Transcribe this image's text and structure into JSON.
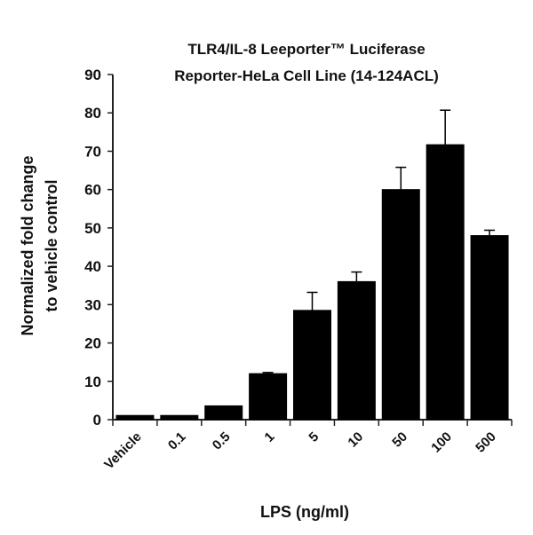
{
  "chart_data": {
    "type": "bar",
    "title_lines": [
      "TLR4/IL-8 Leeporter™ Luciferase",
      "Reporter-HeLa Cell Line (14-124ACL)"
    ],
    "xlabel": "LPS (ng/ml)",
    "ylabel_lines": [
      "Normalized fold change",
      "to vehicle control"
    ],
    "categories": [
      "Vehicle",
      "0.1",
      "0.5",
      "1",
      "5",
      "10",
      "50",
      "100",
      "500"
    ],
    "values": [
      1.1,
      1.1,
      3.6,
      12,
      28.5,
      36,
      60,
      71.7,
      48
    ],
    "error_upper": [
      null,
      null,
      null,
      0.3,
      4.7,
      2.5,
      5.8,
      9.0,
      1.4
    ],
    "ylim": [
      0,
      90
    ],
    "yticks": [
      "0",
      "10",
      "20",
      "30",
      "40",
      "50",
      "60",
      "70",
      "80",
      "90"
    ],
    "grid": false,
    "bar_color": "#000000"
  }
}
